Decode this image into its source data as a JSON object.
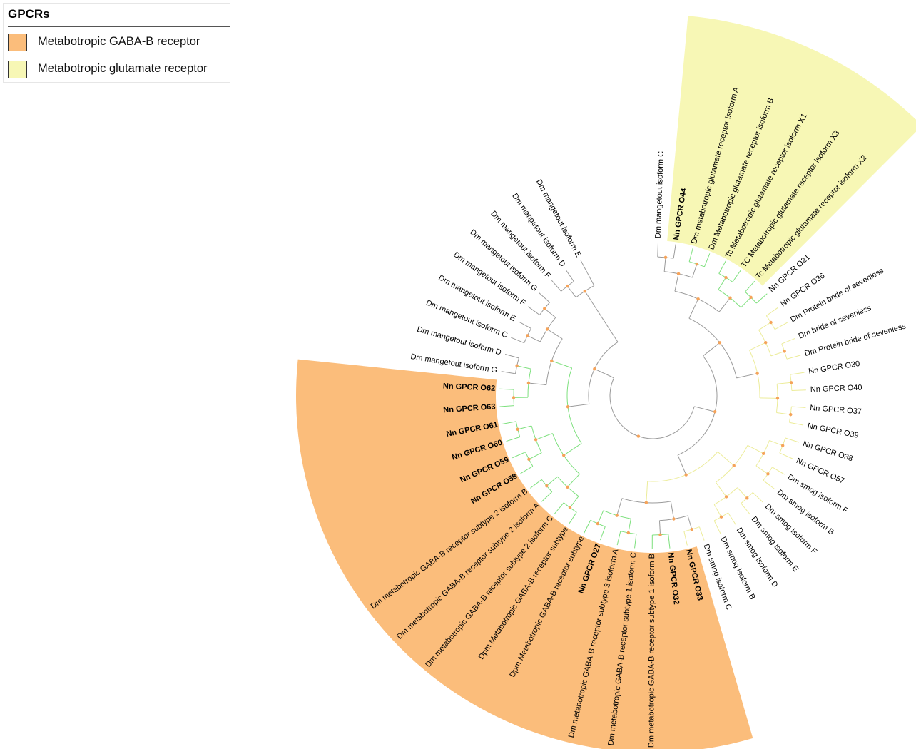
{
  "legend": {
    "title": "GPCRs",
    "entries": [
      {
        "label": "Metabotropic GABA-B receptor",
        "color": "#fbbd7b"
      },
      {
        "label": "Metabotropic glutamate receptor",
        "color": "#f7f7b5"
      }
    ]
  },
  "colors": {
    "gray_branch": "#9a9a9a",
    "green_branch": "#7de07d",
    "yellow_branch": "#ecec9a",
    "node_dot": "#f5a35a"
  },
  "leaves": [
    {
      "label": "Dm mangetout isoform C",
      "bold": false,
      "group": "gray"
    },
    {
      "label": "Nn GPCR O44",
      "bold": true,
      "group": "glutamate"
    },
    {
      "label": "Dm metabotropic glutamate receptor isoform A",
      "bold": false,
      "group": "glutamate"
    },
    {
      "label": "Dm Metabotropic glutamate receptor isoform B",
      "bold": false,
      "group": "glutamate"
    },
    {
      "label": "Tc Metabotropic glutamate receptor isoform X1",
      "bold": false,
      "group": "glutamate"
    },
    {
      "label": "TC Metabotropic glutamate receptor isoform X3",
      "bold": false,
      "group": "glutamate"
    },
    {
      "label": "Tc Metabotropic glutamate receptor isoform X2",
      "bold": false,
      "group": "glutamate"
    },
    {
      "label": "Nn GPCR O21",
      "bold": false,
      "group": "yellow"
    },
    {
      "label": "Nn GPCR O36",
      "bold": false,
      "group": "yellow"
    },
    {
      "label": "Dm Protein bride of sevenless",
      "bold": false,
      "group": "yellow"
    },
    {
      "label": "Dm bride of sevenless",
      "bold": false,
      "group": "yellow"
    },
    {
      "label": "Dm Protein bride of sevenless",
      "bold": false,
      "group": "yellow"
    },
    {
      "label": "Nn GPCR O30",
      "bold": false,
      "group": "yellow"
    },
    {
      "label": "Nn GPCR O40",
      "bold": false,
      "group": "yellow"
    },
    {
      "label": "Nn GPCR O37",
      "bold": false,
      "group": "yellow"
    },
    {
      "label": "Nn GPCR O39",
      "bold": false,
      "group": "yellow"
    },
    {
      "label": "Nn GPCR O38",
      "bold": false,
      "group": "yellow"
    },
    {
      "label": "Nn GPCR O57",
      "bold": false,
      "group": "yellow"
    },
    {
      "label": "Dm smog isoform F",
      "bold": false,
      "group": "yellow"
    },
    {
      "label": "Dm smog isoform B",
      "bold": false,
      "group": "yellow"
    },
    {
      "label": "Dm smog isoform F",
      "bold": false,
      "group": "yellow"
    },
    {
      "label": "Dm smog isoform E",
      "bold": false,
      "group": "yellow"
    },
    {
      "label": "Dm smog isoform D",
      "bold": false,
      "group": "yellow"
    },
    {
      "label": "Dm smog isoform B",
      "bold": false,
      "group": "yellow"
    },
    {
      "label": "Dm smog isoform C",
      "bold": false,
      "group": "yellow"
    },
    {
      "label": "Nn GPCR O33",
      "bold": true,
      "group": "gaba"
    },
    {
      "label": "Nn GPCR O32",
      "bold": true,
      "group": "gaba"
    },
    {
      "label": "Dm metabotropic GABA-B receptor subtype 1 isoform B",
      "bold": false,
      "group": "gaba"
    },
    {
      "label": "Dm metabotropic GABA-B receptor subtype 1 isoform C",
      "bold": false,
      "group": "gaba"
    },
    {
      "label": "Dm metabotropic GABA-B receptor subtype 3 isoform A",
      "bold": false,
      "group": "gaba"
    },
    {
      "label": "Nn GPCR O27",
      "bold": true,
      "group": "gaba"
    },
    {
      "label": "Dpm Metabotropic GABA-B receptor subtype",
      "bold": false,
      "group": "gaba"
    },
    {
      "label": "Dpm Metabotropic GABA-B receptor subtype",
      "bold": false,
      "group": "gaba"
    },
    {
      "label": "Dm metabotropic GABA-B receptor subtype 2 isoform C",
      "bold": false,
      "group": "gaba"
    },
    {
      "label": "Dm metabotropic GABA-B receptor subtype 2 isoform A",
      "bold": false,
      "group": "gaba"
    },
    {
      "label": "Dm metabotropic GABA-B receptor subtype 2 isoform B",
      "bold": false,
      "group": "gaba"
    },
    {
      "label": "Nn GPCR O58",
      "bold": true,
      "group": "gaba"
    },
    {
      "label": "Nn GPCR O59",
      "bold": true,
      "group": "gaba"
    },
    {
      "label": "Nn GPCR O60",
      "bold": true,
      "group": "gaba"
    },
    {
      "label": "Nn GPCR O61",
      "bold": true,
      "group": "gaba"
    },
    {
      "label": "Nn GPCR O63",
      "bold": true,
      "group": "gaba"
    },
    {
      "label": "Nn GPCR O62",
      "bold": true,
      "group": "gaba"
    },
    {
      "label": "Dm mangetout isoform G",
      "bold": false,
      "group": "gray"
    },
    {
      "label": "Dm mangetout isoform D",
      "bold": false,
      "group": "gray"
    },
    {
      "label": "Dm mangetout isoform C",
      "bold": false,
      "group": "gray"
    },
    {
      "label": "Dm mangetout isoform E",
      "bold": false,
      "group": "gray"
    },
    {
      "label": "Dm mangetout isoform F",
      "bold": false,
      "group": "gray"
    },
    {
      "label": "Dm mangetout isoform G",
      "bold": false,
      "group": "gray"
    },
    {
      "label": "Dm mangetout isoform F",
      "bold": false,
      "group": "gray"
    },
    {
      "label": "Dm mangetout isoform D",
      "bold": false,
      "group": "gray"
    },
    {
      "label": "Dm mangetout isoform E",
      "bold": false,
      "group": "gray"
    }
  ]
}
